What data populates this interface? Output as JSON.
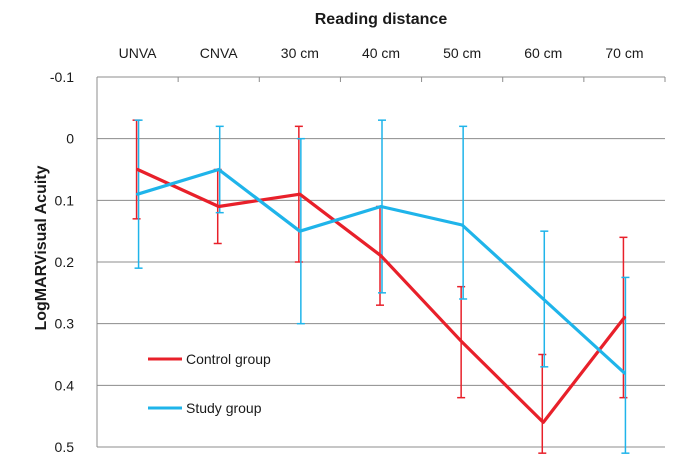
{
  "chart_data": {
    "type": "line",
    "xlabel": "Reading distance",
    "ylabel": "LogMARVisual Acuity",
    "categories": [
      "UNVA",
      "CNVA",
      "30 cm",
      "40 cm",
      "50 cm",
      "60 cm",
      "70 cm"
    ],
    "ylim": [
      -0.1,
      0.5
    ],
    "y_inverted": true,
    "y_ticks": [
      "-0.1",
      "0",
      "0.1",
      "0.2",
      "0.3",
      "0.4",
      "0.5"
    ],
    "x_axis_position": "top",
    "grid": "horizontal",
    "legend_position": "lower-left",
    "series": [
      {
        "name": "Control group",
        "color": "#e8202a",
        "values": [
          0.05,
          0.11,
          0.09,
          0.19,
          0.33,
          0.46,
          0.29
        ],
        "error_low": [
          0.13,
          0.17,
          0.2,
          0.27,
          0.42,
          0.51,
          0.42
        ],
        "error_high": [
          -0.03,
          0.05,
          -0.02,
          0.11,
          0.24,
          0.35,
          0.16
        ]
      },
      {
        "name": "Study group",
        "color": "#1fb4ea",
        "values": [
          0.09,
          0.05,
          0.15,
          0.11,
          0.14,
          0.26,
          0.38
        ],
        "error_low": [
          0.21,
          0.12,
          0.3,
          0.25,
          0.26,
          0.37,
          0.51
        ],
        "error_high": [
          -0.03,
          -0.02,
          0.0,
          -0.03,
          -0.02,
          0.15,
          0.225
        ]
      }
    ]
  }
}
